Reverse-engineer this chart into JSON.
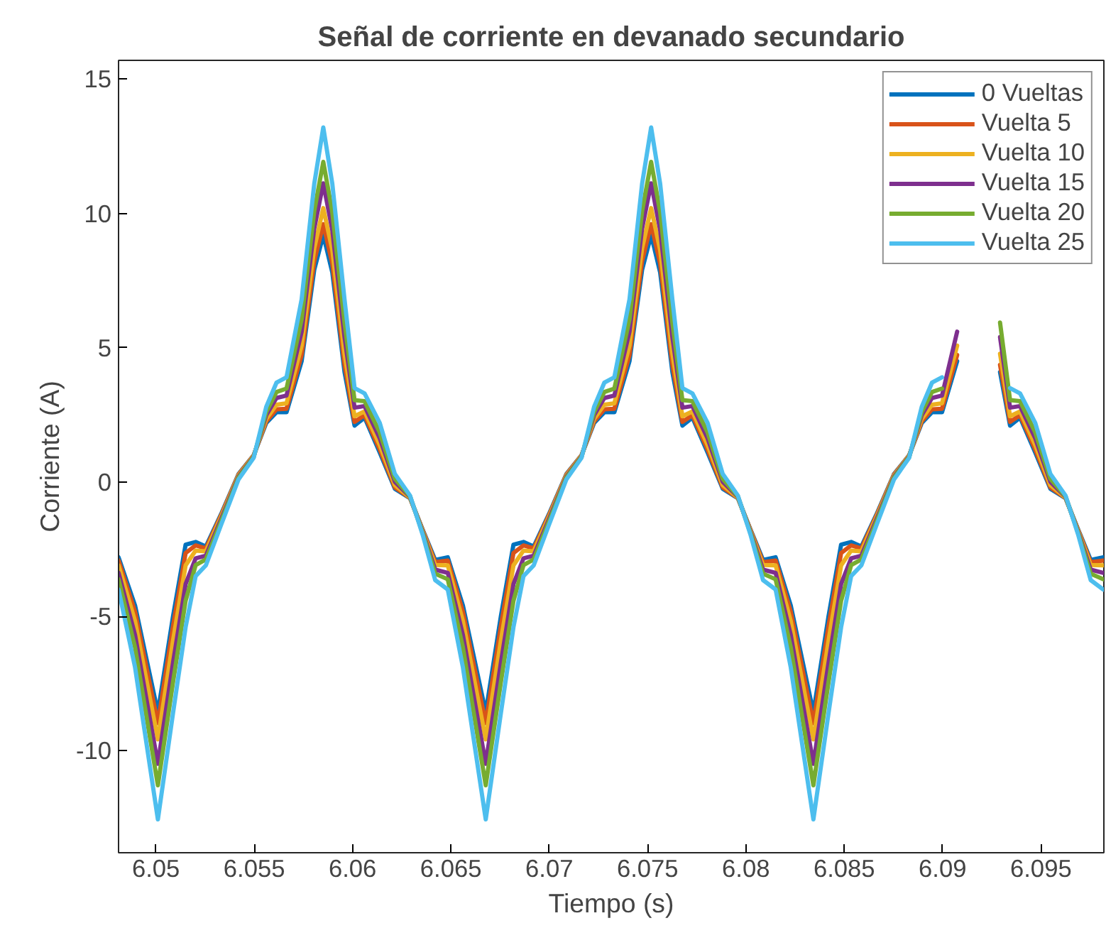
{
  "chart_data": {
    "type": "line",
    "title": "Señal de corriente en devanado secundario",
    "xlabel": "Tiempo (s)",
    "ylabel": "Corriente (A)",
    "xlim": [
      6.0481,
      6.0982
    ],
    "ylim": [
      -13.8,
      15.7
    ],
    "xticks": [
      6.05,
      6.055,
      6.06,
      6.065,
      6.07,
      6.075,
      6.08,
      6.085,
      6.09,
      6.095
    ],
    "yticks": [
      -10,
      -5,
      0,
      5,
      10,
      15
    ],
    "grid": false,
    "legend": "top right",
    "line_style": "solid",
    "marker": "none",
    "x": [
      6.0481,
      6.04894,
      6.0501,
      6.05087,
      6.05151,
      6.05202,
      6.05254,
      6.05331,
      6.0542,
      6.05497,
      6.05561,
      6.05613,
      6.05664,
      6.05741,
      6.05805,
      6.05851,
      6.05897,
      6.05959,
      6.0601,
      6.06061,
      6.06138,
      6.06215,
      6.06292,
      6.06356,
      6.0642,
      6.06484,
      6.06561,
      6.06677,
      6.06754,
      6.06818,
      6.06869,
      6.06921,
      6.06998,
      6.07087,
      6.07164,
      6.07228,
      6.0728,
      6.07331,
      6.07408,
      6.07472,
      6.07518,
      6.07564,
      6.07626,
      6.07677,
      6.07728,
      6.07805,
      6.07882,
      6.07959,
      6.08023,
      6.08087,
      6.08151,
      6.08228,
      6.08343,
      6.0842,
      6.08484,
      6.08535,
      6.08587,
      6.08664,
      6.08753,
      6.0883,
      6.08894,
      6.08946,
      6.08997,
      6.09074,
      6.09138,
      6.09184,
      6.0923,
      6.09292,
      6.09343,
      6.09394,
      6.09471,
      6.09548,
      6.09625,
      6.09689,
      6.09753,
      6.09817
    ],
    "series": [
      {
        "name": "0 Vueltas",
        "color": "#0072bd",
        "values": [
          -2.8,
          -4.6,
          -8.58,
          -5.0,
          -2.33,
          -2.23,
          -2.4,
          -1.2,
          0.3,
          1.0,
          2.2,
          2.6,
          2.6,
          4.5,
          7.9,
          9.2,
          7.8,
          4.1,
          2.1,
          2.4,
          1.1,
          -0.25,
          -0.6,
          -1.76,
          -2.9,
          -2.8,
          -4.6,
          -8.58,
          -5.0,
          -2.33,
          -2.23,
          -2.4,
          -1.2,
          0.3,
          1.0,
          2.2,
          2.6,
          2.6,
          4.5,
          7.9,
          9.2,
          7.8,
          4.1,
          2.1,
          2.4,
          1.1,
          -0.25,
          -0.6,
          -1.76,
          -2.9,
          -2.8,
          -4.6,
          -8.58,
          -5.0,
          -2.33,
          -2.23,
          -2.4,
          -1.2,
          0.3,
          1.0,
          2.2,
          2.6,
          2.6,
          4.5,
          null,
          null,
          null,
          4.1,
          2.1,
          2.4,
          1.1,
          -0.25,
          -0.6,
          -1.76,
          -2.9,
          -2.8
        ]
      },
      {
        "name": "Vuelta 5",
        "color": "#d95319",
        "values": [
          -2.92,
          -4.83,
          -8.98,
          -5.36,
          -2.64,
          -2.36,
          -2.47,
          -1.24,
          0.28,
          0.99,
          2.26,
          2.71,
          2.73,
          4.73,
          8.22,
          9.6,
          8.13,
          4.37,
          2.24,
          2.49,
          1.21,
          -0.2,
          -0.59,
          -1.78,
          -2.98,
          -2.92,
          -4.83,
          -8.98,
          -5.36,
          -2.64,
          -2.36,
          -2.47,
          -1.24,
          0.28,
          0.99,
          2.26,
          2.71,
          2.73,
          4.73,
          8.22,
          9.6,
          8.13,
          4.37,
          2.24,
          2.49,
          1.21,
          -0.2,
          -0.59,
          -1.78,
          -2.98,
          -2.92,
          -4.83,
          -8.98,
          -5.36,
          -2.64,
          -2.36,
          -2.47,
          -1.24,
          0.28,
          0.99,
          2.26,
          2.71,
          2.73,
          4.73,
          null,
          null,
          null,
          4.37,
          2.24,
          2.49,
          1.21,
          -0.2,
          -0.59,
          -1.78,
          -2.98,
          -2.92
        ]
      },
      {
        "name": "Vuelta 10",
        "color": "#edb120",
        "values": [
          -3.1,
          -5.18,
          -9.58,
          -5.9,
          -3.1,
          -2.55,
          -2.58,
          -1.3,
          0.25,
          0.98,
          2.35,
          2.88,
          2.93,
          5.08,
          8.7,
          10.2,
          8.63,
          4.78,
          2.45,
          2.63,
          1.38,
          -0.11,
          -0.58,
          -1.81,
          -3.09,
          -3.1,
          -5.18,
          -9.58,
          -5.9,
          -3.1,
          -2.55,
          -2.58,
          -1.3,
          0.25,
          0.98,
          2.35,
          2.88,
          2.93,
          5.08,
          8.7,
          10.2,
          8.63,
          4.78,
          2.45,
          2.63,
          1.38,
          -0.11,
          -0.58,
          -1.81,
          -3.09,
          -3.1,
          -5.18,
          -9.58,
          -5.9,
          -3.1,
          -2.55,
          -2.58,
          -1.3,
          0.25,
          0.98,
          2.35,
          2.88,
          2.93,
          5.08,
          null,
          null,
          null,
          4.78,
          2.45,
          2.63,
          1.38,
          -0.11,
          -0.58,
          -1.81,
          -3.09,
          -3.1
        ]
      },
      {
        "name": "Vuelta 15",
        "color": "#7e2f8e",
        "values": [
          -3.38,
          -5.7,
          -10.49,
          -6.73,
          -3.8,
          -2.84,
          -2.74,
          -1.39,
          0.2,
          0.95,
          2.49,
          3.13,
          3.22,
          5.6,
          9.44,
          11.12,
          9.38,
          5.4,
          2.77,
          2.83,
          1.63,
          0.01,
          -0.55,
          -1.85,
          -3.26,
          -3.38,
          -5.7,
          -10.49,
          -6.73,
          -3.8,
          -2.84,
          -2.74,
          -1.39,
          0.2,
          0.95,
          2.49,
          3.13,
          3.22,
          5.6,
          9.44,
          11.12,
          9.38,
          5.4,
          2.77,
          2.83,
          1.63,
          0.01,
          -0.55,
          -1.85,
          -3.26,
          -3.38,
          -5.7,
          -10.49,
          -6.73,
          -3.8,
          -2.84,
          -2.74,
          -1.39,
          0.2,
          0.95,
          2.49,
          3.13,
          3.22,
          5.6,
          null,
          null,
          null,
          5.4,
          2.77,
          2.83,
          1.63,
          0.01,
          -0.55,
          -1.85,
          -3.26,
          -3.38
        ]
      },
      {
        "name": "Vuelta 20",
        "color": "#77ac30",
        "values": [
          -3.62,
          -6.16,
          -11.29,
          -7.45,
          -4.42,
          -3.09,
          -2.88,
          -1.47,
          0.16,
          0.93,
          2.61,
          3.35,
          3.48,
          6.06,
          10.08,
          11.92,
          10.04,
          5.94,
          3.05,
          3.01,
          1.85,
          0.12,
          -0.53,
          -1.89,
          -3.41,
          -3.62,
          -6.16,
          -11.29,
          -7.45,
          -4.42,
          -3.09,
          -2.88,
          -1.47,
          0.16,
          0.93,
          2.61,
          3.35,
          3.48,
          6.06,
          10.08,
          11.92,
          10.04,
          5.94,
          3.05,
          3.01,
          1.85,
          0.12,
          -0.53,
          -1.89,
          -3.41,
          -3.62,
          -6.16,
          -11.29,
          -7.45,
          -4.42,
          -3.09,
          -2.88,
          -1.47,
          0.16,
          0.93,
          2.61,
          3.35,
          3.48,
          null,
          null,
          null,
          null,
          5.94,
          3.05,
          3.01,
          1.85,
          0.12,
          -0.53,
          -1.89,
          -3.41,
          -3.62
        ]
      },
      {
        "name": "Vuelta 25",
        "color": "#4dbeee",
        "values": [
          -4.0,
          -6.9,
          -12.56,
          -8.6,
          -5.4,
          -3.5,
          -3.1,
          -1.6,
          0.1,
          0.9,
          2.8,
          3.7,
          3.9,
          6.8,
          11.1,
          13.2,
          11.1,
          6.8,
          3.5,
          3.3,
          2.2,
          0.3,
          -0.5,
          -1.95,
          -3.65,
          -4.0,
          -6.9,
          -12.56,
          -8.6,
          -5.4,
          -3.5,
          -3.1,
          -1.6,
          0.1,
          0.9,
          2.8,
          3.7,
          3.9,
          6.8,
          11.1,
          13.2,
          11.1,
          6.8,
          3.5,
          3.3,
          2.2,
          0.3,
          -0.5,
          -1.95,
          -3.65,
          -4.0,
          -6.9,
          -12.56,
          -8.6,
          -5.4,
          -3.5,
          -3.1,
          -1.6,
          0.1,
          0.9,
          2.8,
          3.7,
          3.9,
          null,
          null,
          null,
          null,
          null,
          3.5,
          3.3,
          2.2,
          0.3,
          -0.5,
          -1.95,
          -3.65,
          -4.0
        ]
      }
    ]
  }
}
